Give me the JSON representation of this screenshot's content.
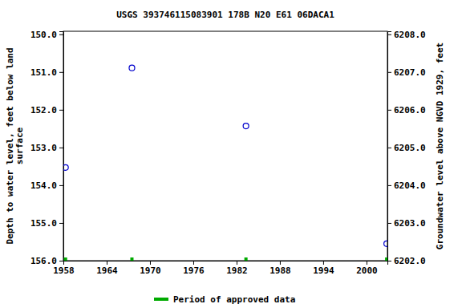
{
  "chart_data": {
    "type": "scatter",
    "title": "USGS 393746115083901 178B N20 E61 06DACA1",
    "y_label": [
      "Depth to water level, feet below land",
      "surface"
    ],
    "y2_label": "Groundwater level above NGVD 1929, feet",
    "x": [
      1958.3,
      1967.5,
      1983.3,
      2002.8
    ],
    "series": [
      {
        "color": "#0000cc",
        "marker": "circle-open",
        "values": [
          153.53,
          150.89,
          152.43,
          155.55
        ]
      },
      {
        "name": "Period of approved data",
        "color": "#00aa00",
        "marker": "square",
        "values": [
          156,
          156,
          156,
          156
        ]
      }
    ],
    "xlim": [
      1958,
      2002.9
    ],
    "xticks": [
      1958,
      1964,
      1970,
      1976,
      1982,
      1988,
      1994,
      2000
    ],
    "ylim": [
      149.92,
      156
    ],
    "yticks": [
      {
        "value": 150,
        "label": "150.0"
      },
      {
        "value": 151,
        "label": "151.0"
      },
      {
        "value": 152,
        "label": "152.0"
      },
      {
        "value": 153,
        "label": "153.0"
      },
      {
        "value": 154,
        "label": "154.0"
      },
      {
        "value": 155,
        "label": "155.0"
      },
      {
        "value": 156,
        "label": "156.0"
      }
    ],
    "y2lim": [
      6208.08,
      6202
    ],
    "y2ticks": [
      {
        "value": 6208,
        "label": "6208.0"
      },
      {
        "value": 6207,
        "label": "6207.0"
      },
      {
        "value": 6206,
        "label": "6206.0"
      },
      {
        "value": 6205,
        "label": "6205.0"
      },
      {
        "value": 6204,
        "label": "6204.0"
      },
      {
        "value": 6203,
        "label": "6203.0"
      },
      {
        "value": 6202,
        "label": "6202.0"
      }
    ],
    "grid": false,
    "legend": "bottom"
  }
}
